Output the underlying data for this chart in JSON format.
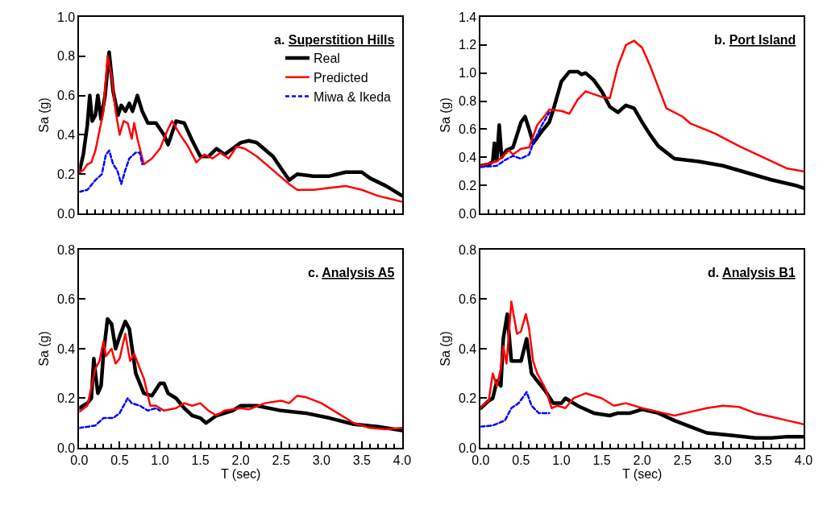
{
  "chart_data": [
    {
      "type": "line",
      "title": "a. Superstition Hills",
      "ylabel": "Sa (g)",
      "xlim": [
        0,
        4
      ],
      "xticks": [
        {
          "value": 0,
          "label": null
        },
        {
          "value": 0.5,
          "label": null
        },
        {
          "value": 1,
          "label": null
        },
        {
          "value": 1.5,
          "label": null
        },
        {
          "value": 2,
          "label": null
        },
        {
          "value": 2.5,
          "label": null
        },
        {
          "value": 3,
          "label": null
        },
        {
          "value": 3.5,
          "label": null
        },
        {
          "value": 4,
          "label": null
        }
      ],
      "ylim": [
        0,
        1
      ],
      "yticks": [
        {
          "value": 0,
          "label": "0.0"
        },
        {
          "value": 0.2,
          "label": "0.2"
        },
        {
          "value": 0.4,
          "label": "0.4"
        },
        {
          "value": 0.6,
          "label": "0.6"
        },
        {
          "value": 0.8,
          "label": "0.8"
        },
        {
          "value": 1,
          "label": "1.0"
        }
      ],
      "tick_labels": "y",
      "legend": "top right",
      "series": [
        {
          "name": "Real",
          "color": "#000000",
          "x": [
            0,
            0.05,
            0.1,
            0.13,
            0.16,
            0.2,
            0.23,
            0.27,
            0.32,
            0.37,
            0.42,
            0.48,
            0.52,
            0.57,
            0.62,
            0.66,
            0.72,
            0.78,
            0.85,
            0.95,
            1.05,
            1.1,
            1.2,
            1.3,
            1.4,
            1.5,
            1.6,
            1.7,
            1.8,
            1.9,
            2.0,
            2.1,
            2.2,
            2.4,
            2.5,
            2.6,
            2.7,
            2.9,
            3.1,
            3.3,
            3.5,
            3.6,
            3.8,
            4.0
          ],
          "values": [
            0.21,
            0.3,
            0.45,
            0.6,
            0.47,
            0.5,
            0.6,
            0.48,
            0.6,
            0.82,
            0.62,
            0.5,
            0.55,
            0.52,
            0.56,
            0.52,
            0.6,
            0.52,
            0.46,
            0.46,
            0.4,
            0.35,
            0.47,
            0.46,
            0.37,
            0.29,
            0.29,
            0.33,
            0.3,
            0.33,
            0.36,
            0.37,
            0.36,
            0.29,
            0.23,
            0.17,
            0.2,
            0.19,
            0.19,
            0.21,
            0.21,
            0.18,
            0.14,
            0.09
          ]
        },
        {
          "name": "Predicted",
          "color": "#ff0000",
          "x": [
            0,
            0.05,
            0.1,
            0.15,
            0.2,
            0.25,
            0.3,
            0.35,
            0.4,
            0.45,
            0.5,
            0.55,
            0.6,
            0.65,
            0.68,
            0.72,
            0.8,
            0.9,
            1.0,
            1.1,
            1.15,
            1.25,
            1.35,
            1.45,
            1.55,
            1.65,
            1.75,
            1.85,
            1.95,
            2.05,
            2.2,
            2.4,
            2.6,
            2.7,
            2.9,
            3.1,
            3.3,
            3.5,
            3.7,
            4.0
          ],
          "values": [
            0.21,
            0.22,
            0.25,
            0.26,
            0.32,
            0.42,
            0.52,
            0.8,
            0.7,
            0.52,
            0.4,
            0.47,
            0.46,
            0.38,
            0.46,
            0.38,
            0.25,
            0.28,
            0.33,
            0.43,
            0.47,
            0.4,
            0.34,
            0.26,
            0.3,
            0.28,
            0.31,
            0.28,
            0.34,
            0.33,
            0.29,
            0.22,
            0.15,
            0.12,
            0.12,
            0.13,
            0.14,
            0.12,
            0.09,
            0.06
          ]
        },
        {
          "name": "Miwa & Ikeda",
          "color": "#0000ff",
          "line_style": "dashed",
          "x": [
            0,
            0.1,
            0.2,
            0.28,
            0.33,
            0.37,
            0.42,
            0.47,
            0.52,
            0.57,
            0.62,
            0.7,
            0.75,
            0.78
          ],
          "values": [
            0.11,
            0.12,
            0.17,
            0.2,
            0.3,
            0.32,
            0.25,
            0.22,
            0.15,
            0.22,
            0.28,
            0.31,
            0.31,
            0.25
          ]
        }
      ]
    },
    {
      "type": "line",
      "title": "b. Port Island",
      "ylabel": "Sa (g)",
      "xlim": [
        0,
        4
      ],
      "xticks": [
        {
          "value": 0,
          "label": null
        },
        {
          "value": 0.5,
          "label": null
        },
        {
          "value": 1,
          "label": null
        },
        {
          "value": 1.5,
          "label": null
        },
        {
          "value": 2,
          "label": null
        },
        {
          "value": 2.5,
          "label": null
        },
        {
          "value": 3,
          "label": null
        },
        {
          "value": 3.5,
          "label": null
        },
        {
          "value": 4,
          "label": null
        }
      ],
      "ylim": [
        0,
        1.4
      ],
      "yticks": [
        {
          "value": 0,
          "label": "0.0"
        },
        {
          "value": 0.2,
          "label": "0.2"
        },
        {
          "value": 0.4,
          "label": "0.4"
        },
        {
          "value": 0.6,
          "label": "0.6"
        },
        {
          "value": 0.8,
          "label": "0.8"
        },
        {
          "value": 1,
          "label": "1.0"
        },
        {
          "value": 1.2,
          "label": "1.2"
        },
        {
          "value": 1.4,
          "label": "1.4"
        }
      ],
      "tick_labels": "y",
      "series": [
        {
          "color": "#000000",
          "x": [
            0,
            0.1,
            0.15,
            0.17,
            0.2,
            0.23,
            0.26,
            0.32,
            0.4,
            0.5,
            0.55,
            0.6,
            0.65,
            0.75,
            0.85,
            0.9,
            1.0,
            1.1,
            1.2,
            1.25,
            1.3,
            1.4,
            1.5,
            1.6,
            1.7,
            1.8,
            1.9,
            2.0,
            2.1,
            2.2,
            2.4,
            2.7,
            3.0,
            3.3,
            3.6,
            3.9,
            4.0
          ],
          "values": [
            0.34,
            0.35,
            0.37,
            0.5,
            0.38,
            0.63,
            0.4,
            0.45,
            0.47,
            0.65,
            0.69,
            0.6,
            0.5,
            0.58,
            0.65,
            0.74,
            0.94,
            1.01,
            1.01,
            0.99,
            1.0,
            0.95,
            0.87,
            0.76,
            0.72,
            0.77,
            0.75,
            0.65,
            0.56,
            0.48,
            0.39,
            0.37,
            0.34,
            0.29,
            0.24,
            0.2,
            0.18
          ]
        },
        {
          "color": "#ff0000",
          "x": [
            0,
            0.2,
            0.3,
            0.35,
            0.4,
            0.5,
            0.6,
            0.7,
            0.8,
            0.85,
            1.0,
            1.1,
            1.2,
            1.3,
            1.4,
            1.5,
            1.6,
            1.7,
            1.8,
            1.9,
            2.0,
            2.1,
            2.2,
            2.3,
            2.5,
            2.6,
            2.9,
            3.2,
            3.5,
            3.8,
            4.0
          ],
          "values": [
            0.34,
            0.37,
            0.42,
            0.45,
            0.42,
            0.46,
            0.47,
            0.63,
            0.7,
            0.74,
            0.73,
            0.71,
            0.81,
            0.87,
            0.85,
            0.83,
            0.82,
            1.05,
            1.2,
            1.23,
            1.18,
            1.05,
            0.9,
            0.75,
            0.69,
            0.64,
            0.57,
            0.48,
            0.4,
            0.32,
            0.3
          ]
        },
        {
          "color": "#0000ff",
          "line_style": "dashed",
          "x": [
            0,
            0.2,
            0.3,
            0.4,
            0.5,
            0.6,
            0.65,
            0.75,
            0.85
          ],
          "values": [
            0.33,
            0.34,
            0.38,
            0.41,
            0.39,
            0.42,
            0.5,
            0.62,
            0.72
          ]
        }
      ]
    },
    {
      "type": "line",
      "title": "c. Analysis A5",
      "xlabel": "T (sec)",
      "ylabel": "Sa (g)",
      "xlim": [
        0,
        4
      ],
      "xticks": [
        {
          "value": 0,
          "label": "0.0"
        },
        {
          "value": 0.5,
          "label": "0.5"
        },
        {
          "value": 1,
          "label": "1.0"
        },
        {
          "value": 1.5,
          "label": "1.5"
        },
        {
          "value": 2,
          "label": "2.0"
        },
        {
          "value": 2.5,
          "label": "2.5"
        },
        {
          "value": 3,
          "label": "3.0"
        },
        {
          "value": 3.5,
          "label": "3.5"
        },
        {
          "value": 4,
          "label": "4.0"
        }
      ],
      "ylim": [
        0,
        0.8
      ],
      "yticks": [
        {
          "value": 0,
          "label": "0.0"
        },
        {
          "value": 0.2,
          "label": "0.2"
        },
        {
          "value": 0.4,
          "label": "0.4"
        },
        {
          "value": 0.6,
          "label": "0.6"
        },
        {
          "value": 0.8,
          "label": "0.8"
        }
      ],
      "series": [
        {
          "color": "#000000",
          "x": [
            0,
            0.1,
            0.15,
            0.18,
            0.2,
            0.23,
            0.27,
            0.3,
            0.35,
            0.4,
            0.45,
            0.5,
            0.57,
            0.62,
            0.7,
            0.8,
            0.9,
            1.0,
            1.05,
            1.1,
            1.2,
            1.3,
            1.4,
            1.5,
            1.57,
            1.7,
            1.9,
            2.0,
            2.2,
            2.5,
            2.8,
            3.1,
            3.4,
            3.7,
            4.0
          ],
          "values": [
            0.16,
            0.18,
            0.2,
            0.36,
            0.3,
            0.22,
            0.25,
            0.38,
            0.52,
            0.5,
            0.4,
            0.45,
            0.51,
            0.48,
            0.3,
            0.22,
            0.21,
            0.26,
            0.26,
            0.22,
            0.2,
            0.16,
            0.13,
            0.12,
            0.1,
            0.13,
            0.15,
            0.17,
            0.17,
            0.15,
            0.14,
            0.12,
            0.095,
            0.085,
            0.07
          ]
        },
        {
          "color": "#ff0000",
          "x": [
            0,
            0.1,
            0.2,
            0.25,
            0.3,
            0.33,
            0.4,
            0.45,
            0.5,
            0.57,
            0.63,
            0.68,
            0.75,
            0.8,
            0.88,
            0.95,
            1.05,
            1.2,
            1.3,
            1.4,
            1.5,
            1.6,
            1.7,
            1.8,
            2.0,
            2.1,
            2.3,
            2.5,
            2.6,
            2.7,
            2.8,
            3.0,
            3.2,
            3.4,
            3.6,
            3.8,
            4.0
          ],
          "values": [
            0.145,
            0.17,
            0.32,
            0.35,
            0.43,
            0.37,
            0.4,
            0.34,
            0.36,
            0.46,
            0.35,
            0.38,
            0.32,
            0.28,
            0.17,
            0.17,
            0.15,
            0.16,
            0.18,
            0.17,
            0.18,
            0.15,
            0.13,
            0.15,
            0.16,
            0.155,
            0.18,
            0.19,
            0.18,
            0.21,
            0.205,
            0.18,
            0.14,
            0.1,
            0.08,
            0.075,
            0.08
          ]
        },
        {
          "color": "#0000ff",
          "line_style": "dashed",
          "x": [
            0,
            0.2,
            0.3,
            0.42,
            0.5,
            0.6,
            0.65,
            0.75,
            0.85,
            0.95,
            1.0
          ],
          "values": [
            0.08,
            0.09,
            0.12,
            0.12,
            0.14,
            0.2,
            0.18,
            0.17,
            0.15,
            0.16,
            0.15
          ]
        }
      ]
    },
    {
      "type": "line",
      "title": "d. Analysis B1",
      "xlabel": "T (sec)",
      "ylabel": "Sa (g)",
      "xlim": [
        0,
        4
      ],
      "xticks": [
        {
          "value": 0,
          "label": "0.0"
        },
        {
          "value": 0.5,
          "label": "0.5"
        },
        {
          "value": 1,
          "label": "1.0"
        },
        {
          "value": 1.5,
          "label": "1.5"
        },
        {
          "value": 2,
          "label": "2.0"
        },
        {
          "value": 2.5,
          "label": "2.5"
        },
        {
          "value": 3,
          "label": "3.0"
        },
        {
          "value": 3.5,
          "label": "3.5"
        },
        {
          "value": 4,
          "label": "4.0"
        }
      ],
      "ylim": [
        0,
        0.8
      ],
      "yticks": [
        {
          "value": 0,
          "label": "0.0"
        },
        {
          "value": 0.2,
          "label": "0.2"
        },
        {
          "value": 0.4,
          "label": "0.4"
        },
        {
          "value": 0.6,
          "label": "0.6"
        },
        {
          "value": 0.8,
          "label": "0.8"
        }
      ],
      "series": [
        {
          "color": "#000000",
          "x": [
            0,
            0.1,
            0.15,
            0.2,
            0.25,
            0.28,
            0.33,
            0.38,
            0.45,
            0.5,
            0.57,
            0.63,
            0.7,
            0.8,
            0.9,
            1.0,
            1.05,
            1.2,
            1.4,
            1.6,
            1.7,
            1.85,
            2.0,
            2.2,
            2.4,
            2.6,
            2.8,
            3.1,
            3.4,
            3.6,
            3.8,
            4.0
          ],
          "values": [
            0.16,
            0.19,
            0.2,
            0.27,
            0.25,
            0.44,
            0.54,
            0.35,
            0.35,
            0.35,
            0.44,
            0.3,
            0.27,
            0.23,
            0.18,
            0.18,
            0.2,
            0.17,
            0.14,
            0.13,
            0.14,
            0.14,
            0.155,
            0.14,
            0.11,
            0.085,
            0.06,
            0.05,
            0.04,
            0.04,
            0.045,
            0.045
          ]
        },
        {
          "color": "#ff0000",
          "x": [
            0,
            0.1,
            0.15,
            0.2,
            0.25,
            0.28,
            0.32,
            0.38,
            0.45,
            0.5,
            0.56,
            0.6,
            0.65,
            0.7,
            0.8,
            0.88,
            0.95,
            1.05,
            1.15,
            1.3,
            1.5,
            1.65,
            1.8,
            2.0,
            2.2,
            2.4,
            2.6,
            2.8,
            3.0,
            3.2,
            3.4,
            3.6,
            3.8,
            4.0
          ],
          "values": [
            0.165,
            0.19,
            0.3,
            0.25,
            0.32,
            0.41,
            0.34,
            0.59,
            0.46,
            0.47,
            0.54,
            0.48,
            0.35,
            0.3,
            0.24,
            0.16,
            0.17,
            0.16,
            0.2,
            0.22,
            0.2,
            0.17,
            0.18,
            0.16,
            0.145,
            0.13,
            0.145,
            0.16,
            0.17,
            0.165,
            0.14,
            0.125,
            0.11,
            0.095
          ]
        },
        {
          "color": "#0000ff",
          "line_style": "dashed",
          "x": [
            0,
            0.15,
            0.3,
            0.38,
            0.47,
            0.57,
            0.63,
            0.72,
            0.85
          ],
          "values": [
            0.085,
            0.09,
            0.11,
            0.16,
            0.18,
            0.225,
            0.17,
            0.14,
            0.14
          ]
        }
      ]
    }
  ]
}
